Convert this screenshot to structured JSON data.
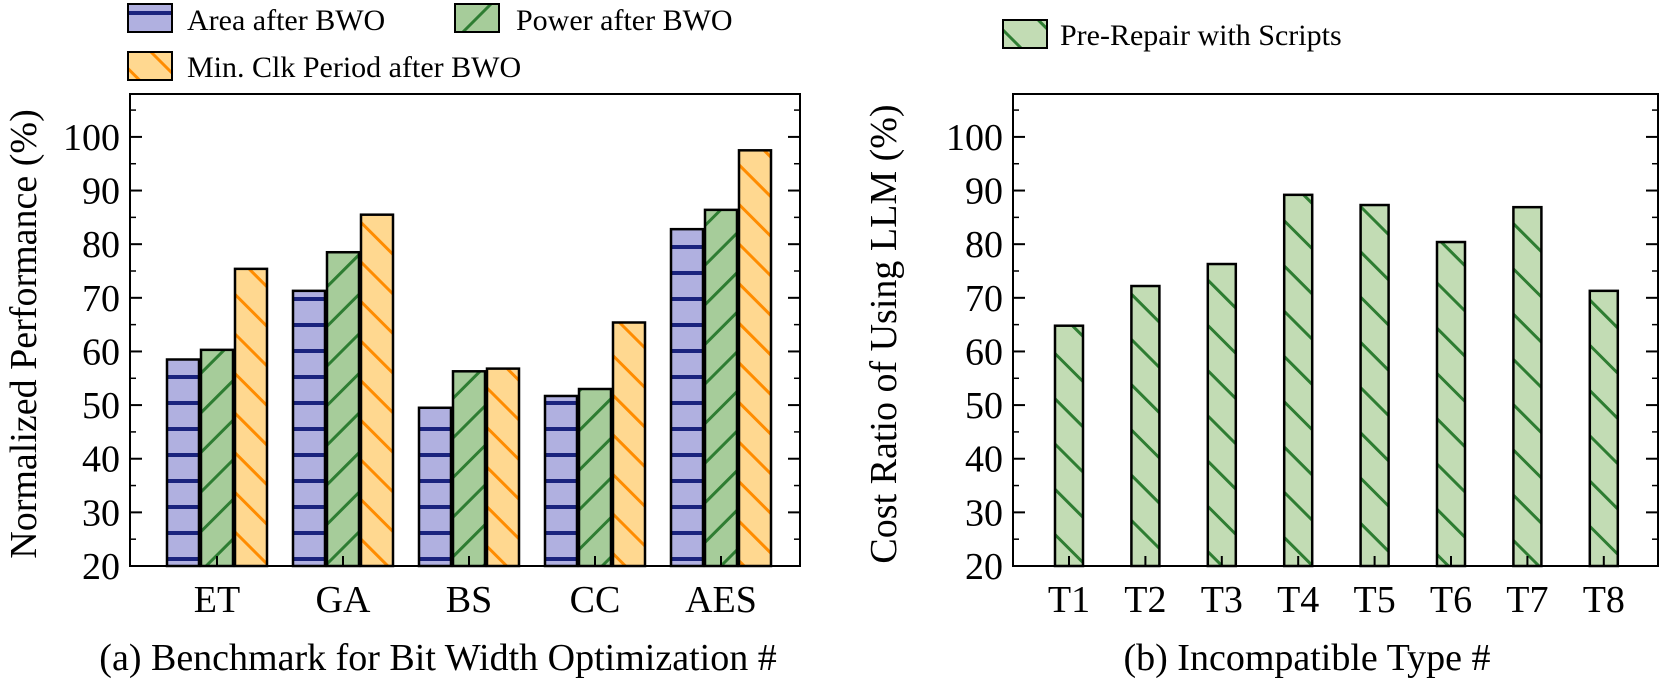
{
  "chart_data": [
    {
      "type": "bar",
      "title": "",
      "xlabel": "(a) Benchmark for Bit Width Optimization #",
      "ylabel": "Normalized Performance (%)",
      "ylim": [
        20,
        108
      ],
      "yticks": [
        20,
        30,
        40,
        50,
        60,
        70,
        80,
        90,
        100
      ],
      "grid": false,
      "legend_position": "top",
      "categories": [
        "ET",
        "GA",
        "BS",
        "CC",
        "AES"
      ],
      "series": [
        {
          "name": "Area after BWO",
          "color": "#b0b0e0",
          "hatch": "horizontal",
          "hatch_color": "#1a237e",
          "values": [
            58.5,
            71.3,
            49.5,
            51.7,
            82.8
          ]
        },
        {
          "name": "Power after BWO",
          "color": "#a6cc9a",
          "hatch": "forward-diagonal",
          "hatch_color": "#2e7d32",
          "values": [
            60.3,
            78.5,
            56.3,
            53.0,
            86.4
          ]
        },
        {
          "name": "Min. Clk Period after BWO",
          "color": "#ffd890",
          "hatch": "back-diagonal",
          "hatch_color": "#ff8c00",
          "values": [
            75.4,
            85.5,
            56.8,
            65.4,
            97.5
          ]
        }
      ]
    },
    {
      "type": "bar",
      "title": "",
      "xlabel": "(b) Incompatible Type #",
      "ylabel": "Cost Ratio of Using LLM (%)",
      "ylim": [
        20,
        108
      ],
      "yticks": [
        20,
        30,
        40,
        50,
        60,
        70,
        80,
        90,
        100
      ],
      "grid": false,
      "legend_position": "top",
      "categories": [
        "T1",
        "T2",
        "T3",
        "T4",
        "T5",
        "T6",
        "T7",
        "T8"
      ],
      "series": [
        {
          "name": "Pre-Repair with Scripts",
          "color": "#c2dcb4",
          "hatch": "back-diagonal",
          "hatch_color": "#2e7d32",
          "values": [
            64.8,
            72.2,
            76.3,
            89.2,
            87.3,
            80.4,
            86.9,
            71.3
          ]
        }
      ]
    }
  ]
}
